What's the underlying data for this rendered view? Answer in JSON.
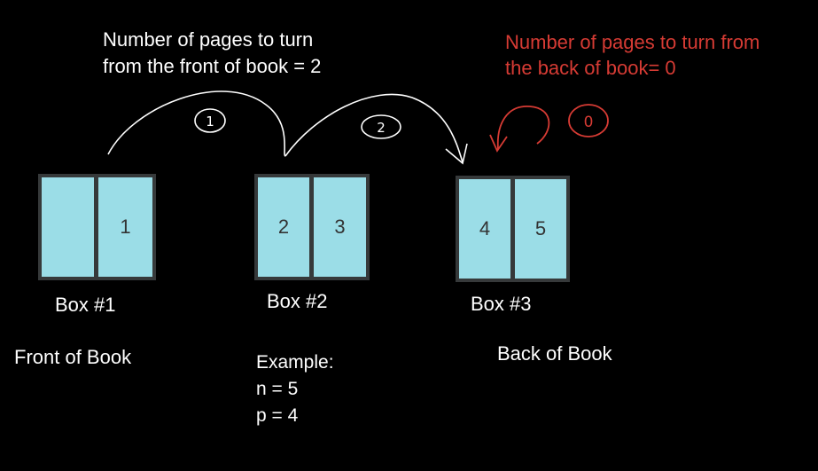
{
  "front_note": [
    "Number of pages to turn",
    "from the front of book = 2"
  ],
  "back_note": [
    "Number of pages to turn from",
    "the back of book= 0"
  ],
  "turn_marks": [
    "1",
    "2"
  ],
  "back_turn_mark": "0",
  "boxes": [
    {
      "label": "Box #1",
      "pages": [
        "",
        "1"
      ]
    },
    {
      "label": "Box #2",
      "pages": [
        "2",
        "3"
      ]
    },
    {
      "label": "Box #3",
      "pages": [
        "4",
        "5"
      ]
    }
  ],
  "front_label": "Front of Book",
  "back_label": "Back of Book",
  "example": [
    "Example:",
    "n = 5",
    "p = 4"
  ],
  "colors": {
    "page": "#9bdde7",
    "frame": "#36393a",
    "annotation_red": "#d63b34"
  }
}
